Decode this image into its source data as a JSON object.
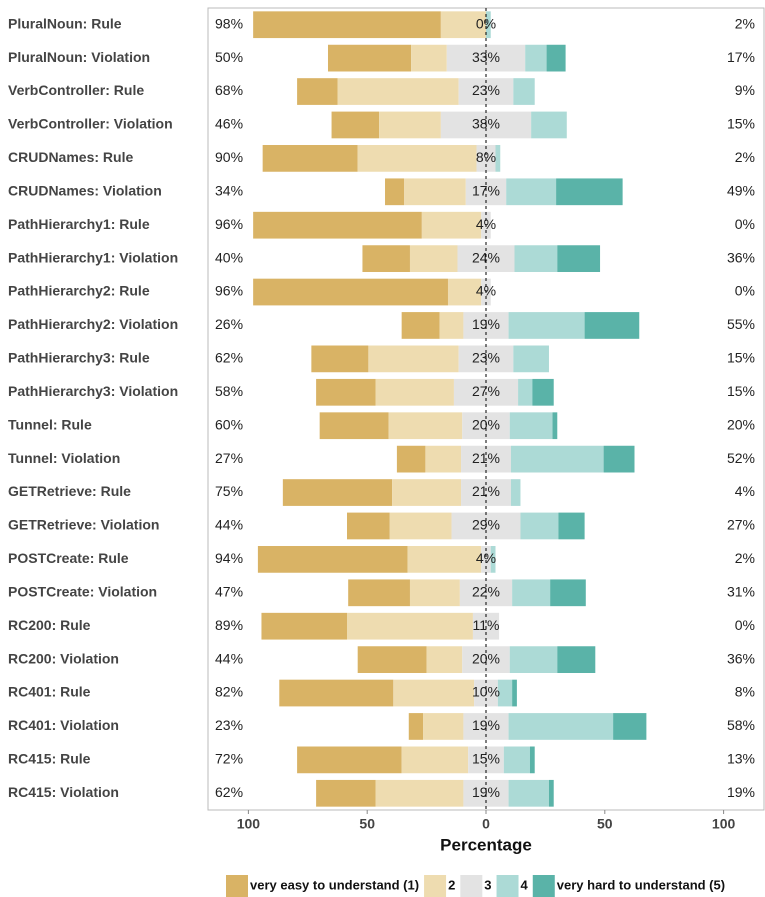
{
  "chart_data": {
    "type": "diverging_bar",
    "x_label": "Percentage",
    "categories": [
      "PluralNoun: Rule",
      "PluralNoun: Violation",
      "VerbController: Rule",
      "VerbController: Violation",
      "CRUDNames: Rule",
      "CRUDNames: Violation",
      "PathHierarchy1: Rule",
      "PathHierarchy1: Violation",
      "PathHierarchy2: Rule",
      "PathHierarchy2: Violation",
      "PathHierarchy3: Rule",
      "PathHierarchy3: Violation",
      "Tunnel: Rule",
      "Tunnel: Violation",
      "GETRetrieve: Rule",
      "GETRetrieve: Violation",
      "POSTCreate: Rule",
      "POSTCreate: Violation",
      "RC200: Rule",
      "RC200: Violation",
      "RC401: Rule",
      "RC401: Violation",
      "RC415: Rule",
      "RC415: Violation"
    ],
    "series": [
      {
        "name": "very easy to understand (1)",
        "color": "#d9b365",
        "values": [
          79,
          35,
          17,
          20,
          40,
          8,
          71,
          20,
          82,
          16,
          24,
          25,
          29,
          12,
          46,
          18,
          63,
          26,
          36,
          29,
          48,
          6,
          44,
          25
        ]
      },
      {
        "name": "2",
        "color": "#eedcb0",
        "values": [
          19,
          15,
          51,
          26,
          50,
          26,
          25,
          20,
          14,
          10,
          38,
          33,
          31,
          15,
          29,
          26,
          31,
          21,
          53,
          15,
          34,
          17,
          28,
          37
        ]
      },
      {
        "name": "3",
        "color": "#e3e3e3",
        "values": [
          0,
          33,
          23,
          38,
          8,
          17,
          4,
          24,
          4,
          19,
          23,
          27,
          20,
          21,
          21,
          29,
          4,
          22,
          11,
          20,
          10,
          19,
          15,
          19
        ],
        "value_labels": [
          "0%",
          "33%",
          "23%",
          "38%",
          "8%",
          "17%",
          "4%",
          "24%",
          "4%",
          "19%",
          "23%",
          "27%",
          "20%",
          "21%",
          "21%",
          "29%",
          "4%",
          "22%",
          "11%",
          "20%",
          "10%",
          "19%",
          "15%",
          "19%"
        ]
      },
      {
        "name": "4",
        "color": "#acdad6",
        "values": [
          2,
          9,
          9,
          15,
          2,
          21,
          0,
          18,
          0,
          32,
          15,
          6,
          18,
          39,
          4,
          16,
          2,
          16,
          0,
          20,
          6,
          44,
          11,
          17
        ]
      },
      {
        "name": "very hard to understand (5)",
        "color": "#5ab3a8",
        "values": [
          0,
          8,
          0,
          0,
          0,
          28,
          0,
          18,
          0,
          23,
          0,
          9,
          2,
          13,
          0,
          11,
          0,
          15,
          0,
          16,
          2,
          14,
          2,
          2
        ]
      }
    ],
    "left_labels": [
      "98%",
      "50%",
      "68%",
      "46%",
      "90%",
      "34%",
      "96%",
      "40%",
      "96%",
      "26%",
      "62%",
      "58%",
      "60%",
      "27%",
      "75%",
      "44%",
      "94%",
      "47%",
      "89%",
      "44%",
      "82%",
      "23%",
      "72%",
      "62%"
    ],
    "right_labels": [
      "2%",
      "17%",
      "9%",
      "15%",
      "2%",
      "49%",
      "0%",
      "36%",
      "0%",
      "55%",
      "15%",
      "15%",
      "20%",
      "52%",
      "4%",
      "27%",
      "2%",
      "31%",
      "0%",
      "36%",
      "8%",
      "58%",
      "13%",
      "19%"
    ],
    "xlim": [
      -117,
      117
    ],
    "xticks": [
      {
        "value": -100,
        "label": "100"
      },
      {
        "value": -50,
        "label": "50"
      },
      0,
      50,
      100
    ],
    "legend": "bottom"
  }
}
